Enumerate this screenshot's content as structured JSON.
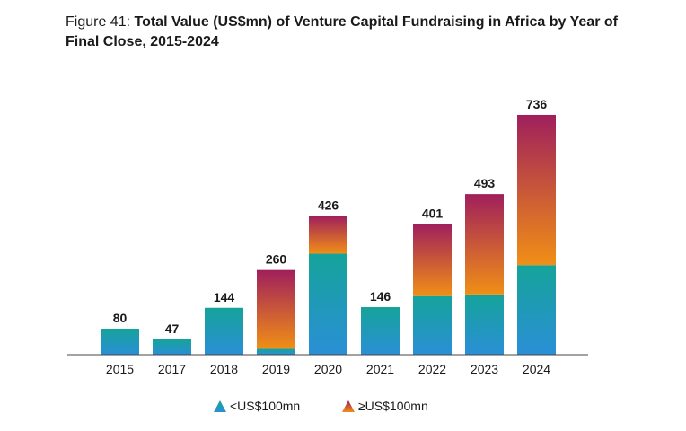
{
  "figure": {
    "prefix": "Figure 41: ",
    "title": "Total Value (US$mn) of Venture Capital Fundraising in Africa by Year of Final Close, 2015-2024"
  },
  "legend": {
    "small": "<US$100mn",
    "large": "≥US$100mn"
  },
  "colors": {
    "small_top": "#15a39a",
    "small_bottom": "#2a8fd6",
    "large_top": "#a01f5c",
    "large_bottom": "#f08f16",
    "axis": "#444444"
  },
  "chart_data": {
    "type": "bar",
    "stacked": true,
    "title": "Total Value (US$mn) of Venture Capital Fundraising in Africa by Year of Final Close, 2015-2024",
    "categories": [
      "2015",
      "2017",
      "2018",
      "2019",
      "2020",
      "2021",
      "2022",
      "2023",
      "2024"
    ],
    "series": [
      {
        "name": "<US$100mn",
        "values": [
          80,
          47,
          144,
          18,
          310,
          146,
          180,
          185,
          275
        ]
      },
      {
        "name": "≥US$100mn",
        "values": [
          0,
          0,
          0,
          242,
          116,
          0,
          221,
          308,
          461
        ]
      }
    ],
    "totals": [
      80,
      47,
      144,
      260,
      426,
      146,
      401,
      493,
      736
    ],
    "ylim": [
      0,
      780
    ],
    "xlabel": "",
    "ylabel": "",
    "grid": false,
    "legend_position": "bottom"
  }
}
